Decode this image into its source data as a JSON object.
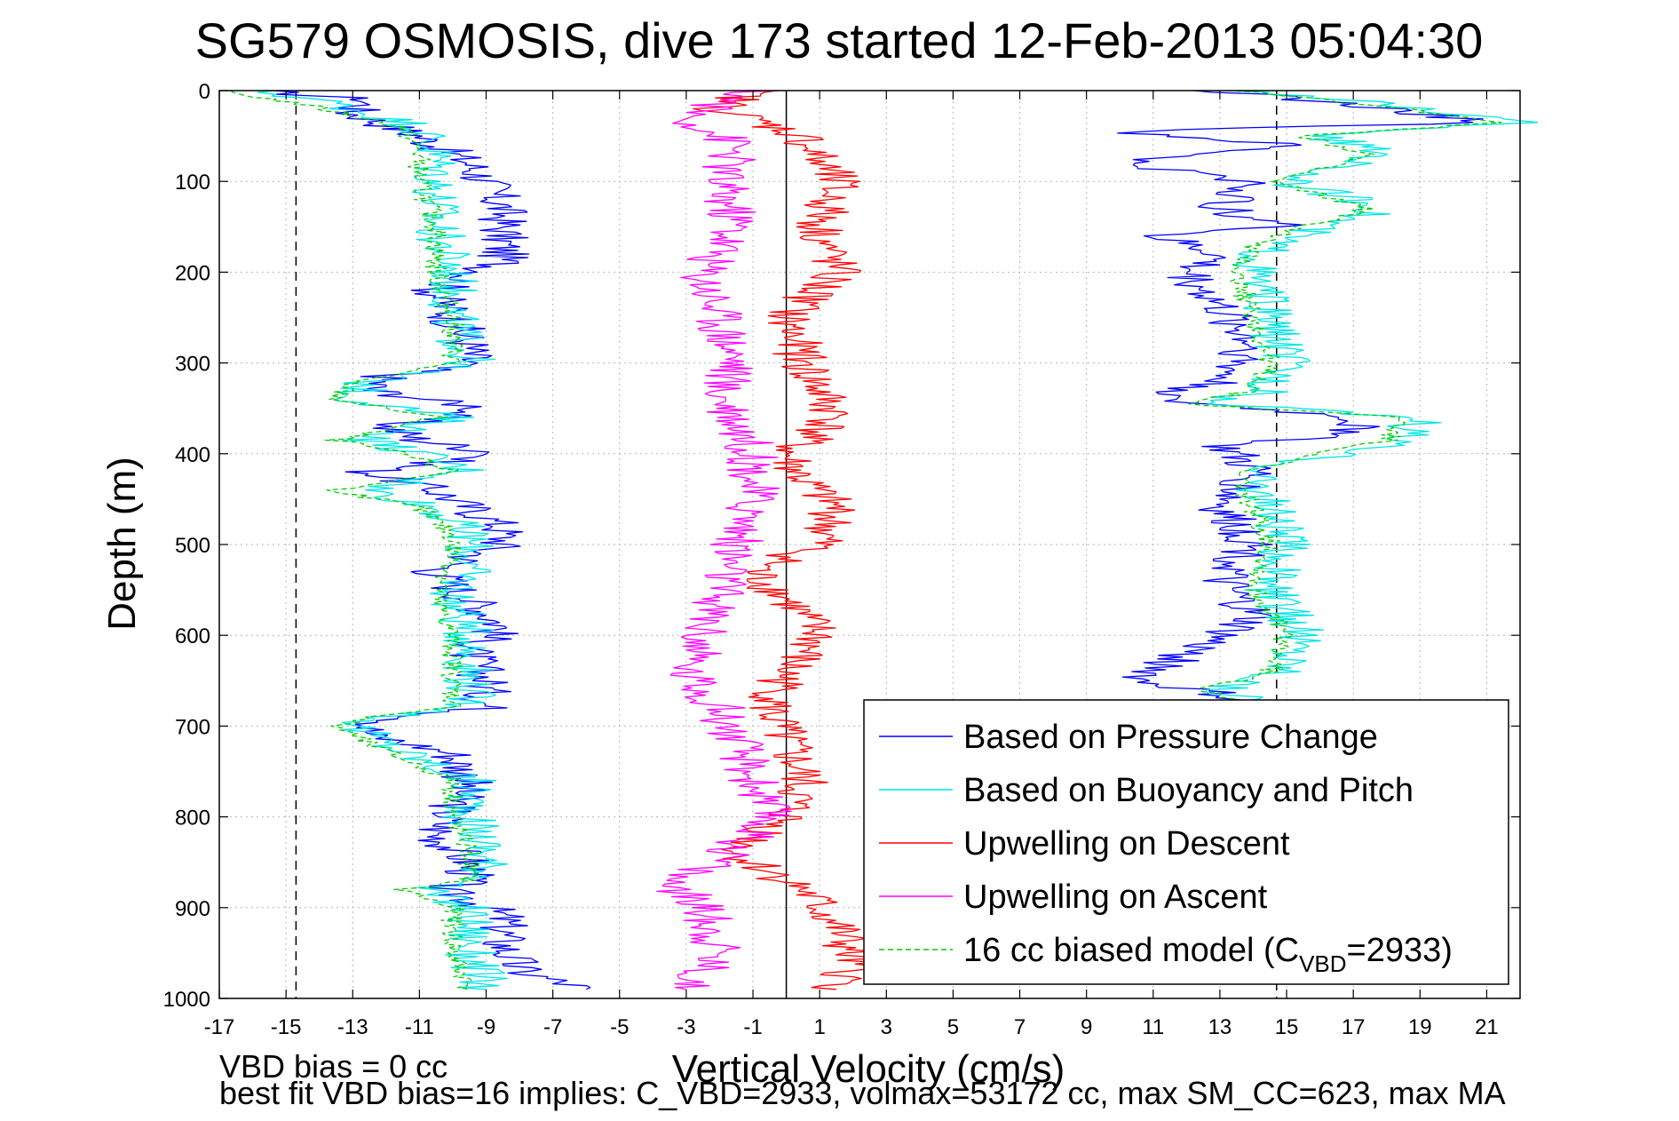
{
  "chart_data": {
    "type": "line",
    "title": "SG579 OSMOSIS, dive 173 started 12-Feb-2013 05:04:30",
    "xlabel": "Vertical Velocity (cm/s)",
    "ylabel": "Depth (m)",
    "xlim": [
      -17,
      22
    ],
    "ylim": [
      0,
      1000
    ],
    "y_reversed": true,
    "xticks": [
      -17,
      -15,
      -13,
      -11,
      -9,
      -7,
      -5,
      -3,
      -1,
      1,
      3,
      5,
      7,
      9,
      11,
      13,
      15,
      17,
      19,
      21
    ],
    "yticks": [
      0,
      100,
      200,
      300,
      400,
      500,
      600,
      700,
      800,
      900,
      1000
    ],
    "grid": true,
    "legend_position": "bottom-right",
    "reference_lines": [
      {
        "x": -14.7,
        "style": "dashed",
        "color": "#000000"
      },
      {
        "x": 14.7,
        "style": "dashed",
        "color": "#000000"
      },
      {
        "x": 0,
        "style": "solid",
        "color": "#000000"
      }
    ],
    "series": [
      {
        "name": "Based on Pressure Change",
        "color": "#0000ff",
        "dash": false,
        "depth": [
          0,
          10,
          25,
          50,
          80,
          100,
          130,
          160,
          190,
          220,
          250,
          280,
          300,
          315,
          330,
          350,
          370,
          385,
          400,
          420,
          440,
          460,
          480,
          500,
          530,
          560,
          590,
          620,
          650,
          680,
          690,
          700,
          710,
          730,
          760,
          790,
          820,
          850,
          870,
          880,
          890,
          910,
          940,
          970,
          990
        ],
        "values": [
          -16,
          -12.5,
          -13,
          -11,
          -9.5,
          -9,
          -8.5,
          -8.5,
          -8.5,
          -10.5,
          -10,
          -9.5,
          -9.5,
          -12,
          -12.5,
          -9,
          -12,
          -11,
          -8.5,
          -12.5,
          -10.5,
          -9.5,
          -8.5,
          -8.5,
          -10.5,
          -9.5,
          -8.5,
          -9.5,
          -9,
          -9,
          -11,
          -12.5,
          -12.5,
          -10,
          -9.5,
          -10,
          -10.5,
          -9.5,
          -9.5,
          -10.5,
          -9.5,
          -8.5,
          -8.5,
          -8,
          -6
        ]
      },
      {
        "name": "Based on Buoyancy and Pitch",
        "color": "#00e6e6",
        "dash": false,
        "depth": [
          0,
          10,
          40,
          70,
          100,
          150,
          200,
          250,
          300,
          320,
          340,
          360,
          385,
          400,
          420,
          440,
          460,
          490,
          520,
          560,
          600,
          640,
          680,
          690,
          700,
          720,
          760,
          800,
          840,
          870,
          880,
          900,
          950,
          990
        ],
        "values": [
          -16,
          -14,
          -11,
          -10.5,
          -10.5,
          -10.5,
          -10,
          -10,
          -9.5,
          -12.5,
          -13,
          -10,
          -12.5,
          -11,
          -9.5,
          -12.5,
          -10.5,
          -9.5,
          -9.5,
          -10,
          -9.5,
          -9.5,
          -9.5,
          -12,
          -13,
          -12,
          -9.5,
          -9.5,
          -9,
          -9,
          -11,
          -9.5,
          -9.5,
          -9
        ]
      },
      {
        "name": "Upwelling on Descent",
        "color": "#ff0000",
        "dash": false,
        "depth": [
          0,
          20,
          50,
          80,
          100,
          150,
          200,
          250,
          300,
          330,
          360,
          400,
          430,
          460,
          500,
          530,
          560,
          600,
          640,
          680,
          720,
          760,
          800,
          840,
          860,
          880,
          920,
          960,
          990
        ],
        "values": [
          -1,
          -2,
          0.5,
          1,
          1.5,
          1,
          1.5,
          0,
          0.5,
          1,
          1.5,
          0,
          0.5,
          1.5,
          1,
          -1,
          0,
          1,
          0,
          -0.5,
          0,
          0.5,
          0,
          -1.5,
          -0.5,
          0.5,
          1.5,
          2,
          1.5
        ]
      },
      {
        "name": "Upwelling on Ascent",
        "color": "#ff00ff",
        "dash": false,
        "depth": [
          0,
          30,
          60,
          100,
          150,
          200,
          250,
          300,
          330,
          360,
          400,
          450,
          500,
          550,
          600,
          640,
          680,
          720,
          760,
          800,
          850,
          870,
          900,
          950,
          990
        ],
        "values": [
          -1,
          -3,
          -1.5,
          -2,
          -1.5,
          -2.5,
          -2,
          -1.5,
          -2,
          -1.5,
          -1,
          -1,
          -1.5,
          -2,
          -2.5,
          -3,
          -2,
          -1.5,
          -1,
          -0.5,
          -2,
          -3.5,
          -2.5,
          -2,
          -3
        ]
      },
      {
        "name": "16 cc biased model (C_VBD=2933)",
        "color": "#00cc00",
        "dash": true,
        "depth": [
          0,
          15,
          40,
          70,
          100,
          150,
          200,
          250,
          300,
          320,
          340,
          360,
          385,
          400,
          420,
          440,
          460,
          490,
          520,
          560,
          600,
          640,
          680,
          690,
          700,
          720,
          760,
          800,
          840,
          870,
          880,
          900,
          950,
          990
        ],
        "values": [
          -17,
          -14.5,
          -11.5,
          -11,
          -11,
          -10.5,
          -10.5,
          -10,
          -10,
          -13,
          -13.5,
          -10.5,
          -13.5,
          -11.5,
          -10,
          -13.5,
          -11,
          -10,
          -10,
          -10.5,
          -10,
          -10,
          -10,
          -12.5,
          -13.5,
          -12.5,
          -10,
          -10,
          -9.5,
          -9.5,
          -11.5,
          -10,
          -10,
          -9.5
        ]
      },
      {
        "name": "",
        "color": "#0000ff",
        "dash": false,
        "group": "ascent",
        "depth": [
          0,
          20,
          35,
          45,
          60,
          80,
          100,
          130,
          150,
          160,
          180,
          200,
          240,
          280,
          320,
          340,
          360,
          380,
          390,
          420,
          460,
          500,
          540,
          580,
          620,
          650,
          665,
          680
        ],
        "values": [
          13,
          18,
          21,
          10,
          15,
          10,
          14,
          13,
          15,
          11,
          13,
          12,
          13,
          14,
          13,
          11,
          17,
          17,
          13,
          14,
          13,
          14,
          13,
          14,
          12,
          10.5,
          13,
          14
        ]
      },
      {
        "name": "",
        "color": "#00e6e6",
        "dash": false,
        "group": "ascent",
        "depth": [
          0,
          20,
          35,
          50,
          70,
          100,
          130,
          150,
          170,
          200,
          250,
          300,
          330,
          345,
          360,
          385,
          420,
          460,
          500,
          550,
          600,
          640,
          660,
          680
        ],
        "values": [
          14,
          19,
          22,
          16,
          18,
          15,
          18,
          16,
          14.5,
          14,
          14.5,
          15,
          14.5,
          12.5,
          19,
          18.5,
          14,
          14.5,
          15,
          14.5,
          15.5,
          15,
          13,
          15
        ]
      },
      {
        "name": "",
        "color": "#00cc00",
        "dash": true,
        "group": "ascent",
        "depth": [
          0,
          20,
          35,
          50,
          70,
          100,
          130,
          150,
          170,
          200,
          250,
          300,
          330,
          345,
          360,
          385,
          420,
          460,
          500,
          550,
          600,
          640,
          660,
          680
        ],
        "values": [
          13.5,
          18.5,
          21.5,
          15.5,
          17.5,
          14.5,
          17.5,
          15.5,
          14,
          13.5,
          14,
          14.5,
          14,
          12,
          18.5,
          18,
          13.5,
          14,
          14.5,
          14,
          15,
          14.5,
          12.5,
          14.5
        ]
      }
    ]
  },
  "legend": {
    "entries": [
      {
        "label": "Based on Pressure Change",
        "color": "#0000ff",
        "dash": false
      },
      {
        "label": "Based on Buoyancy and Pitch",
        "color": "#00e6e6",
        "dash": false
      },
      {
        "label": "Upwelling on Descent",
        "color": "#ff0000",
        "dash": false
      },
      {
        "label": "Upwelling on Ascent",
        "color": "#ff00ff",
        "dash": false
      },
      {
        "label": "16 cc biased model (C",
        "sub": "VBD",
        "suffix": "=2933)",
        "color": "#00cc00",
        "dash": true
      }
    ]
  },
  "footnotes": {
    "line1": "VBD bias = 0 cc",
    "line2": "best fit VBD bias=16 implies: C_VBD=2933, volmax=53172 cc, max SM_CC=623, max MA"
  }
}
